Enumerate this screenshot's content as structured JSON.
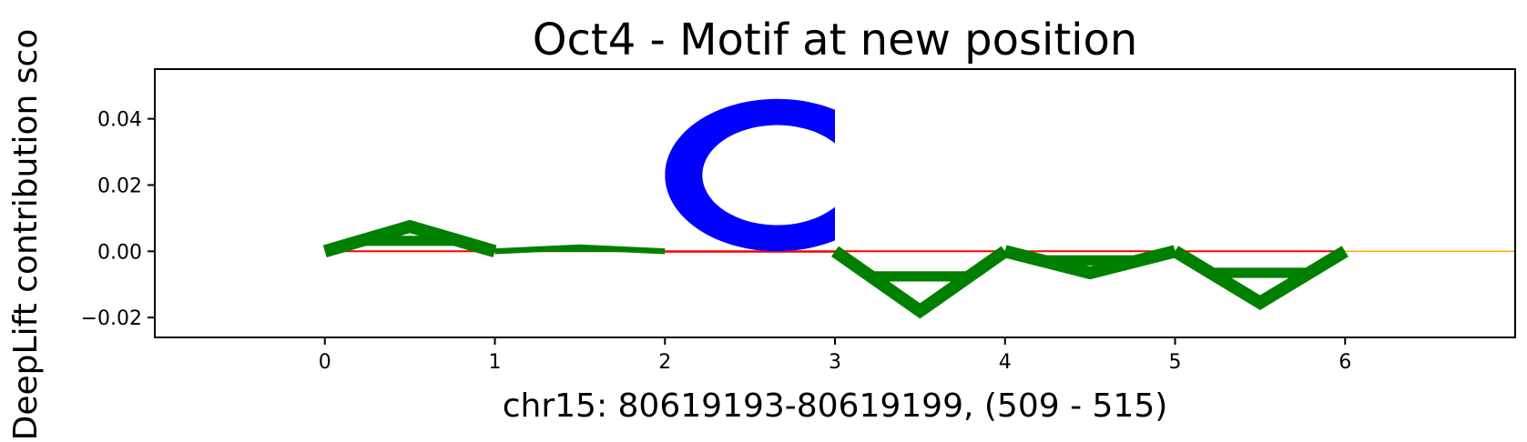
{
  "chart_data": {
    "type": "sequence-logo",
    "title": "Oct4 - Motif at new position",
    "xlabel": "chr15: 80619193-80619199, (509 - 515)",
    "ylabel": "DeepLift contribution sco",
    "xlim": [
      -1,
      7
    ],
    "ylim": [
      -0.026,
      0.055
    ],
    "x_ticks": [
      0,
      1,
      2,
      3,
      4,
      5,
      6
    ],
    "y_ticks": [
      0.04,
      0.02,
      0.0,
      -0.02
    ],
    "y_tick_labels": [
      "0.04",
      "0.02",
      "0.00",
      "−0.02"
    ],
    "letters": [
      {
        "pos": 0,
        "base": "A",
        "value": 0.0075,
        "color": "#008000"
      },
      {
        "pos": 1,
        "base": "A",
        "value": 0.0012,
        "color": "#008000"
      },
      {
        "pos": 2,
        "base": "T",
        "value": -0.0002,
        "color": "#ff0000"
      },
      {
        "pos": 2,
        "base": "C",
        "value": 0.046,
        "color": "#0000ff"
      },
      {
        "pos": 3,
        "base": "A",
        "value": -0.018,
        "color": "#008000"
      },
      {
        "pos": 4,
        "base": "A",
        "value": -0.0065,
        "color": "#008000"
      },
      {
        "pos": 5,
        "base": "A",
        "value": -0.0155,
        "color": "#008000"
      },
      {
        "pos": 6,
        "base": "G",
        "value": 0.0002,
        "color": "#ffa500"
      }
    ],
    "baseline_color": "#ff0000",
    "grid": false
  }
}
